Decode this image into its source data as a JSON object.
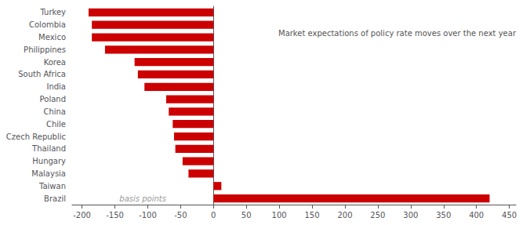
{
  "chart_data": {
    "type": "bar",
    "orientation": "horizontal",
    "categories": [
      "Turkey",
      "Colombia",
      "Mexico",
      "Philippines",
      "Korea",
      "South Africa",
      "India",
      "Poland",
      "China",
      "Chile",
      "Czech Republic",
      "Thailand",
      "Hungary",
      "Malaysia",
      "Taiwan",
      "Brazil"
    ],
    "values": [
      -190,
      -185,
      -185,
      -165,
      -120,
      -115,
      -105,
      -72,
      -68,
      -62,
      -60,
      -58,
      -47,
      -38,
      12,
      420
    ],
    "color": "#cc0000",
    "xlabel": "basis points",
    "annotation": "Market expectations of policy rate moves over the next year",
    "xlim": [
      -215,
      460
    ],
    "xticks": [
      -200,
      -150,
      -100,
      -50,
      0,
      50,
      100,
      150,
      200,
      250,
      300,
      350,
      400,
      450
    ],
    "grid": false
  }
}
